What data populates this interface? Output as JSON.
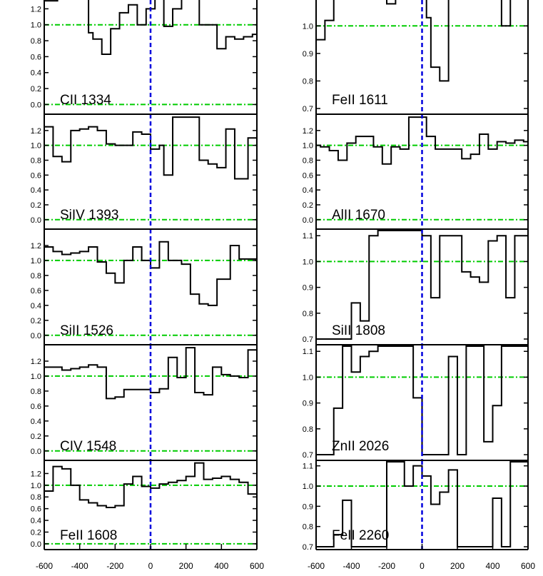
{
  "chart_data": [
    {
      "type": "line",
      "label": "CII 1334",
      "xlim": [
        -600,
        600
      ],
      "ylim": [
        -0.05,
        1.4
      ],
      "yticks": [
        "0.0",
        "0.2",
        "0.4",
        "0.6",
        "0.8",
        "1.0",
        "1.2"
      ],
      "x": [
        -600,
        -575,
        -550,
        -525,
        -500,
        -475,
        -450,
        -425,
        -400,
        -375,
        -350,
        -325,
        -300,
        -275,
        -250,
        -225,
        -200,
        -175,
        -150,
        -125,
        -100,
        -75,
        -50,
        -25,
        0,
        25,
        50,
        75,
        100,
        125,
        150,
        175,
        200,
        225,
        250,
        275,
        300,
        325,
        350,
        375,
        400,
        425,
        450,
        475,
        500,
        525,
        550,
        575
      ],
      "y": [
        1.3,
        1.3,
        1.3,
        1.45,
        1.45,
        1.45,
        1.45,
        1.45,
        1.45,
        1.45,
        0.9,
        0.82,
        0.82,
        0.63,
        0.63,
        0.95,
        0.95,
        1.15,
        1.15,
        1.25,
        1.25,
        1.0,
        1.0,
        1.2,
        1.2,
        1.35,
        1.35,
        0.98,
        0.98,
        1.2,
        1.2,
        1.45,
        1.45,
        1.45,
        1.45,
        1.0,
        1.0,
        1.0,
        1.0,
        0.7,
        0.7,
        0.85,
        0.85,
        0.82,
        0.82,
        0.85,
        0.85,
        0.88
      ]
    },
    {
      "type": "line",
      "label": "FeII 1611",
      "xlim": [
        -600,
        600
      ],
      "ylim": [
        0.7,
        1.12
      ],
      "yticks": [
        "0.7",
        "0.8",
        "0.9",
        "1.0",
        "1.1"
      ],
      "x": [
        -600,
        -575,
        -550,
        -525,
        -500,
        -475,
        -450,
        -425,
        -400,
        -375,
        -350,
        -325,
        -300,
        -275,
        -250,
        -225,
        -200,
        -175,
        -150,
        -125,
        -100,
        -75,
        -50,
        -25,
        0,
        25,
        50,
        75,
        100,
        125,
        150,
        175,
        200,
        225,
        250,
        275,
        300,
        325,
        350,
        375,
        400,
        425,
        450,
        475,
        500,
        525,
        550,
        575
      ],
      "y": [
        0.95,
        0.95,
        1.02,
        1.02,
        1.12,
        1.12,
        1.12,
        1.12,
        1.12,
        1.12,
        1.12,
        1.12,
        1.12,
        1.12,
        1.12,
        1.12,
        1.08,
        1.08,
        1.1,
        1.1,
        1.12,
        1.12,
        1.1,
        1.1,
        1.12,
        1.03,
        0.85,
        0.85,
        0.8,
        0.8,
        1.12,
        1.12,
        1.12,
        1.12,
        1.12,
        1.12,
        1.12,
        1.12,
        1.12,
        1.12,
        1.12,
        1.12,
        1.0,
        1.0,
        1.12,
        1.12,
        1.12,
        1.12
      ]
    },
    {
      "type": "line",
      "label": "SiIV 1393",
      "xlim": [
        -600,
        600
      ],
      "ylim": [
        -0.05,
        1.4
      ],
      "yticks": [
        "0.0",
        "0.2",
        "0.4",
        "0.6",
        "0.8",
        "1.0",
        "1.2"
      ],
      "x": [
        -600,
        -575,
        -550,
        -525,
        -500,
        -475,
        -450,
        -425,
        -400,
        -375,
        -350,
        -325,
        -300,
        -275,
        -250,
        -225,
        -200,
        -175,
        -150,
        -125,
        -100,
        -75,
        -50,
        -25,
        0,
        25,
        50,
        75,
        100,
        125,
        150,
        175,
        200,
        225,
        250,
        275,
        300,
        325,
        350,
        375,
        400,
        425,
        450,
        475,
        500,
        525,
        550,
        575
      ],
      "y": [
        1.25,
        1.25,
        0.85,
        0.85,
        0.78,
        0.78,
        1.2,
        1.2,
        1.22,
        1.22,
        1.25,
        1.25,
        1.2,
        1.2,
        1.02,
        1.02,
        1.0,
        1.0,
        1.0,
        1.0,
        1.18,
        1.18,
        1.15,
        1.15,
        0.95,
        0.95,
        1.0,
        0.6,
        0.6,
        1.38,
        1.38,
        1.38,
        1.38,
        1.38,
        1.38,
        0.8,
        0.8,
        0.75,
        0.75,
        0.7,
        0.7,
        1.22,
        1.22,
        0.55,
        0.55,
        0.55,
        1.1,
        1.1
      ]
    },
    {
      "type": "line",
      "label": "AlII 1670",
      "xlim": [
        -600,
        600
      ],
      "ylim": [
        -0.05,
        1.4
      ],
      "yticks": [
        "0.0",
        "0.2",
        "0.4",
        "0.6",
        "0.8",
        "1.0",
        "1.2"
      ],
      "x": [
        -600,
        -575,
        -550,
        -525,
        -500,
        -475,
        -450,
        -425,
        -400,
        -375,
        -350,
        -325,
        -300,
        -275,
        -250,
        -225,
        -200,
        -175,
        -150,
        -125,
        -100,
        -75,
        -50,
        -25,
        0,
        25,
        50,
        75,
        100,
        125,
        150,
        175,
        200,
        225,
        250,
        275,
        300,
        325,
        350,
        375,
        400,
        425,
        450,
        475,
        500,
        525,
        550,
        575
      ],
      "y": [
        1.0,
        0.98,
        0.98,
        0.93,
        0.93,
        0.8,
        0.8,
        1.03,
        1.03,
        1.12,
        1.12,
        1.12,
        1.12,
        0.98,
        0.98,
        0.75,
        0.75,
        0.98,
        0.98,
        0.95,
        0.95,
        1.38,
        1.38,
        1.38,
        1.38,
        1.12,
        1.12,
        0.95,
        0.95,
        0.95,
        0.95,
        0.95,
        0.95,
        0.82,
        0.82,
        0.88,
        0.88,
        1.15,
        1.15,
        0.95,
        0.95,
        1.05,
        1.05,
        1.03,
        1.03,
        1.07,
        1.07,
        1.05
      ]
    },
    {
      "type": "line",
      "label": "SiII 1526",
      "xlim": [
        -600,
        600
      ],
      "ylim": [
        -0.05,
        1.4
      ],
      "yticks": [
        "0.0",
        "0.2",
        "0.4",
        "0.6",
        "0.8",
        "1.0",
        "1.2"
      ],
      "x": [
        -600,
        -575,
        -550,
        -525,
        -500,
        -475,
        -450,
        -425,
        -400,
        -375,
        -350,
        -325,
        -300,
        -275,
        -250,
        -225,
        -200,
        -175,
        -150,
        -125,
        -100,
        -75,
        -50,
        -25,
        0,
        25,
        50,
        75,
        100,
        125,
        150,
        175,
        200,
        225,
        250,
        275,
        300,
        325,
        350,
        375,
        400,
        425,
        450,
        475,
        500,
        525,
        550,
        575
      ],
      "y": [
        1.18,
        1.18,
        1.12,
        1.12,
        1.08,
        1.08,
        1.1,
        1.1,
        1.12,
        1.12,
        1.18,
        1.18,
        0.98,
        0.98,
        0.83,
        0.83,
        0.7,
        0.7,
        1.0,
        1.0,
        1.18,
        1.18,
        1.0,
        1.0,
        0.9,
        0.9,
        1.25,
        1.25,
        1.0,
        1.0,
        1.0,
        0.95,
        0.95,
        0.55,
        0.55,
        0.42,
        0.42,
        0.4,
        0.4,
        0.75,
        0.75,
        0.75,
        1.2,
        1.2,
        1.02,
        1.02,
        1.02,
        1.02
      ]
    },
    {
      "type": "line",
      "label": "SiII 1808",
      "xlim": [
        -600,
        600
      ],
      "ylim": [
        0.7,
        1.12
      ],
      "yticks": [
        "0.7",
        "0.8",
        "0.9",
        "1.0",
        "1.1"
      ],
      "x": [
        -600,
        -575,
        -550,
        -525,
        -500,
        -475,
        -450,
        -425,
        -400,
        -375,
        -350,
        -325,
        -300,
        -275,
        -250,
        -225,
        -200,
        -175,
        -150,
        -125,
        -100,
        -75,
        -50,
        -25,
        0,
        25,
        50,
        75,
        100,
        125,
        150,
        175,
        200,
        225,
        250,
        275,
        300,
        325,
        350,
        375,
        400,
        425,
        450,
        475,
        500,
        525,
        550,
        575
      ],
      "y": [
        0.7,
        0.7,
        0.7,
        0.7,
        0.7,
        0.7,
        0.7,
        0.7,
        0.84,
        0.84,
        0.77,
        0.77,
        1.1,
        1.1,
        1.12,
        1.12,
        1.12,
        1.12,
        1.12,
        1.12,
        1.12,
        1.12,
        1.12,
        1.12,
        1.1,
        1.1,
        0.86,
        0.86,
        1.1,
        1.1,
        1.1,
        1.1,
        1.1,
        0.96,
        0.96,
        0.94,
        0.94,
        0.92,
        0.92,
        1.08,
        1.08,
        1.1,
        1.1,
        0.86,
        0.86,
        1.1,
        1.1,
        1.1
      ]
    },
    {
      "type": "line",
      "label": "CIV 1548",
      "xlim": [
        -600,
        600
      ],
      "ylim": [
        -0.05,
        1.4
      ],
      "yticks": [
        "0.0",
        "0.2",
        "0.4",
        "0.6",
        "0.8",
        "1.0",
        "1.2"
      ],
      "x": [
        -600,
        -575,
        -550,
        -525,
        -500,
        -475,
        -450,
        -425,
        -400,
        -375,
        -350,
        -325,
        -300,
        -275,
        -250,
        -225,
        -200,
        -175,
        -150,
        -125,
        -100,
        -75,
        -50,
        -25,
        0,
        25,
        50,
        75,
        100,
        125,
        150,
        175,
        200,
        225,
        250,
        275,
        300,
        325,
        350,
        375,
        400,
        425,
        450,
        475,
        500,
        525,
        550,
        575
      ],
      "y": [
        1.12,
        1.12,
        1.12,
        1.12,
        1.08,
        1.08,
        1.1,
        1.1,
        1.12,
        1.12,
        1.15,
        1.15,
        1.12,
        1.12,
        0.7,
        0.7,
        0.72,
        0.72,
        0.82,
        0.82,
        0.82,
        0.82,
        0.82,
        0.82,
        0.78,
        0.78,
        0.83,
        0.83,
        1.25,
        1.25,
        0.98,
        0.98,
        1.38,
        1.38,
        0.78,
        0.78,
        0.75,
        0.75,
        1.12,
        1.12,
        1.02,
        1.02,
        1.0,
        1.0,
        0.98,
        0.98,
        1.35,
        1.35
      ]
    },
    {
      "type": "line",
      "label": "ZnII 2026",
      "xlim": [
        -600,
        600
      ],
      "ylim": [
        0.7,
        1.12
      ],
      "yticks": [
        "0.7",
        "0.8",
        "0.9",
        "1.0",
        "1.1"
      ],
      "x": [
        -600,
        -575,
        -550,
        -525,
        -500,
        -475,
        -450,
        -425,
        -400,
        -375,
        -350,
        -325,
        -300,
        -275,
        -250,
        -225,
        -200,
        -175,
        -150,
        -125,
        -100,
        -75,
        -50,
        -25,
        0,
        25,
        50,
        75,
        100,
        125,
        150,
        175,
        200,
        225,
        250,
        275,
        300,
        325,
        350,
        375,
        400,
        425,
        450,
        475,
        500,
        525,
        550,
        575
      ],
      "y": [
        0.7,
        0.7,
        0.7,
        0.7,
        0.88,
        0.88,
        1.12,
        1.12,
        1.02,
        1.02,
        1.08,
        1.08,
        1.1,
        1.1,
        1.12,
        1.12,
        1.12,
        1.12,
        1.12,
        1.12,
        1.12,
        1.12,
        0.92,
        0.92,
        0.7,
        0.7,
        0.7,
        0.7,
        0.7,
        0.7,
        1.08,
        1.08,
        0.7,
        0.7,
        1.12,
        1.12,
        1.12,
        1.12,
        0.75,
        0.75,
        0.89,
        0.89,
        1.12,
        1.12,
        1.12,
        1.12,
        1.12,
        1.12
      ]
    },
    {
      "type": "line",
      "label": "FeII 1608",
      "xlim": [
        -600,
        600
      ],
      "ylim": [
        -0.05,
        1.4
      ],
      "yticks": [
        "0.0",
        "0.2",
        "0.4",
        "0.6",
        "0.8",
        "1.0",
        "1.2"
      ],
      "x": [
        -600,
        -575,
        -550,
        -525,
        -500,
        -475,
        -450,
        -425,
        -400,
        -375,
        -350,
        -325,
        -300,
        -275,
        -250,
        -225,
        -200,
        -175,
        -150,
        -125,
        -100,
        -75,
        -50,
        -25,
        0,
        25,
        50,
        75,
        100,
        125,
        150,
        175,
        200,
        225,
        250,
        275,
        300,
        325,
        350,
        375,
        400,
        425,
        450,
        475,
        500,
        525,
        550,
        575
      ],
      "y": [
        0.9,
        0.9,
        1.32,
        1.32,
        1.28,
        1.28,
        1.0,
        1.0,
        0.75,
        0.75,
        0.7,
        0.7,
        0.65,
        0.65,
        0.62,
        0.62,
        0.65,
        0.65,
        1.02,
        1.02,
        1.15,
        1.15,
        0.98,
        0.98,
        0.95,
        0.95,
        1.02,
        1.02,
        1.05,
        1.05,
        1.08,
        1.08,
        1.15,
        1.15,
        1.38,
        1.38,
        1.1,
        1.1,
        1.12,
        1.12,
        1.15,
        1.15,
        1.1,
        1.1,
        1.05,
        1.05,
        0.85,
        0.85
      ]
    },
    {
      "type": "line",
      "label": "FeII 2260",
      "xlim": [
        -600,
        600
      ],
      "ylim": [
        0.7,
        1.12
      ],
      "yticks": [
        "0.7",
        "0.8",
        "0.9",
        "1.0",
        "1.1"
      ],
      "x": [
        -600,
        -575,
        -550,
        -525,
        -500,
        -475,
        -450,
        -425,
        -400,
        -375,
        -350,
        -325,
        -300,
        -275,
        -250,
        -225,
        -200,
        -175,
        -150,
        -125,
        -100,
        -75,
        -50,
        -25,
        0,
        25,
        50,
        75,
        100,
        125,
        150,
        175,
        200,
        225,
        250,
        275,
        300,
        325,
        350,
        375,
        400,
        425,
        450,
        475,
        500,
        525,
        550,
        575
      ],
      "y": [
        0.7,
        0.7,
        0.7,
        0.7,
        0.76,
        0.76,
        0.93,
        0.93,
        0.7,
        0.7,
        0.7,
        0.7,
        0.7,
        0.7,
        0.7,
        0.7,
        1.12,
        1.12,
        1.12,
        1.12,
        1.0,
        1.0,
        1.1,
        1.1,
        1.05,
        1.05,
        0.91,
        0.91,
        0.97,
        0.97,
        1.08,
        1.08,
        0.7,
        0.7,
        0.7,
        0.7,
        0.7,
        0.7,
        0.7,
        0.7,
        0.94,
        0.94,
        0.7,
        0.7,
        1.12,
        1.12,
        1.12,
        1.12
      ]
    }
  ],
  "xticks": [
    "-600",
    "-400",
    "-200",
    "0",
    "200",
    "400",
    "600"
  ],
  "colors": {
    "continuum": "#00cc00",
    "zero_velocity": "#0000dd",
    "spectrum": "#000000",
    "frame": "#000000"
  }
}
